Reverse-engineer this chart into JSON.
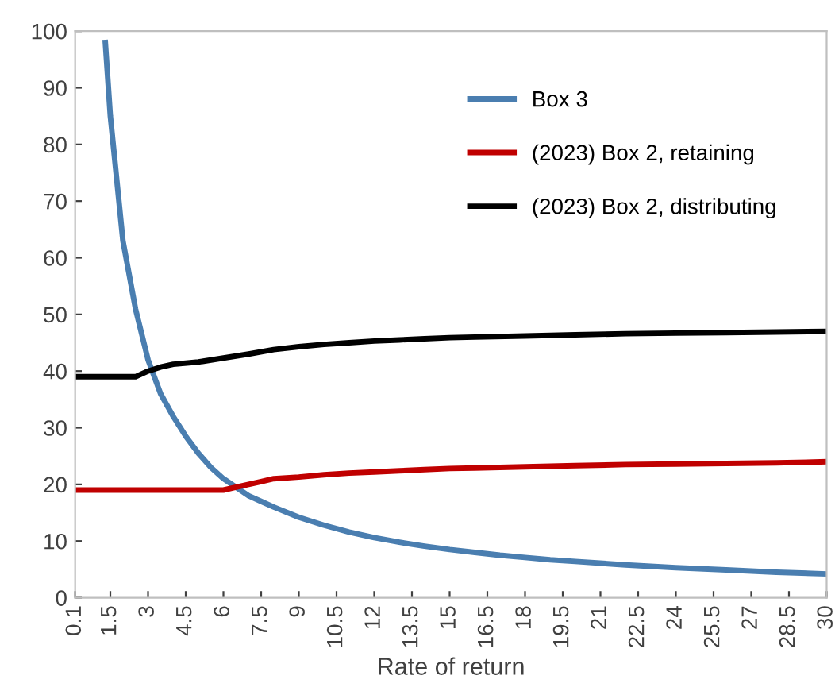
{
  "chart_data": {
    "type": "line",
    "xlabel": "Rate of return",
    "xlim": [
      0.1,
      30
    ],
    "xticks": [
      0.1,
      1.5,
      3,
      4.5,
      6,
      7.5,
      9,
      10.5,
      12,
      13.5,
      15,
      16.5,
      18,
      19.5,
      21,
      22.5,
      24,
      25.5,
      27,
      28.5,
      30
    ],
    "ylim": [
      0,
      100
    ],
    "yticks": [
      0,
      10,
      20,
      30,
      40,
      50,
      60,
      70,
      80,
      90,
      100
    ],
    "grid": false,
    "legend": "top right",
    "series": [
      {
        "name": "Box 3",
        "color": "#4a7eb0",
        "x": [
          1.3,
          1.5,
          2,
          2.5,
          3,
          3.5,
          4,
          4.5,
          5,
          5.5,
          6,
          6.5,
          7,
          7.5,
          8,
          9,
          10,
          11,
          12,
          13,
          14,
          15,
          16,
          17,
          18,
          19,
          20,
          22,
          24,
          26,
          28,
          30
        ],
        "values": [
          98,
          85,
          63,
          51,
          42,
          36,
          32,
          28.5,
          25.5,
          23,
          21,
          19.5,
          18,
          17,
          16,
          14.2,
          12.8,
          11.6,
          10.6,
          9.8,
          9.1,
          8.5,
          8,
          7.5,
          7.1,
          6.7,
          6.4,
          5.8,
          5.3,
          4.9,
          4.5,
          4.2
        ]
      },
      {
        "name": "(2023) Box 2, retaining",
        "color": "#c00000",
        "x": [
          0.1,
          6,
          6.5,
          7,
          7.5,
          8,
          9,
          10,
          11,
          12,
          13,
          14,
          15,
          16,
          17,
          18,
          20,
          22,
          24,
          26,
          28,
          30
        ],
        "values": [
          19,
          19,
          19.5,
          20,
          20.5,
          21,
          21.3,
          21.7,
          22,
          22.2,
          22.4,
          22.6,
          22.8,
          22.9,
          23,
          23.1,
          23.3,
          23.5,
          23.6,
          23.7,
          23.8,
          24
        ]
      },
      {
        "name": "(2023) Box 2, distributing",
        "color": "#000000",
        "x": [
          0.1,
          2.5,
          3,
          3.5,
          4,
          5,
          6,
          7,
          8,
          9,
          10,
          11,
          12,
          13,
          14,
          15,
          16,
          18,
          20,
          22,
          24,
          26,
          28,
          30
        ],
        "values": [
          39,
          39,
          40,
          40.7,
          41.2,
          41.6,
          42.3,
          43,
          43.8,
          44.3,
          44.7,
          45,
          45.3,
          45.5,
          45.7,
          45.9,
          46,
          46.2,
          46.4,
          46.6,
          46.7,
          46.8,
          46.9,
          47
        ]
      }
    ]
  }
}
